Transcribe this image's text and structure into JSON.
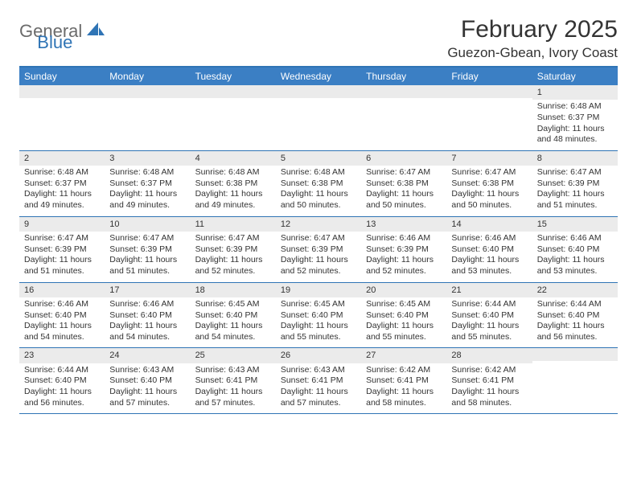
{
  "logo": {
    "part1": "General",
    "part2": "Blue"
  },
  "title": "February 2025",
  "location": "Guezon-Gbean, Ivory Coast",
  "colors": {
    "accent": "#3b7fc4",
    "rule": "#2f74b5",
    "stripe": "#ebebeb"
  },
  "dayNames": [
    "Sunday",
    "Monday",
    "Tuesday",
    "Wednesday",
    "Thursday",
    "Friday",
    "Saturday"
  ],
  "weeks": [
    [
      null,
      null,
      null,
      null,
      null,
      null,
      {
        "n": "1",
        "sr": "Sunrise: 6:48 AM",
        "ss": "Sunset: 6:37 PM",
        "dl": "Daylight: 11 hours and 48 minutes."
      }
    ],
    [
      {
        "n": "2",
        "sr": "Sunrise: 6:48 AM",
        "ss": "Sunset: 6:37 PM",
        "dl": "Daylight: 11 hours and 49 minutes."
      },
      {
        "n": "3",
        "sr": "Sunrise: 6:48 AM",
        "ss": "Sunset: 6:37 PM",
        "dl": "Daylight: 11 hours and 49 minutes."
      },
      {
        "n": "4",
        "sr": "Sunrise: 6:48 AM",
        "ss": "Sunset: 6:38 PM",
        "dl": "Daylight: 11 hours and 49 minutes."
      },
      {
        "n": "5",
        "sr": "Sunrise: 6:48 AM",
        "ss": "Sunset: 6:38 PM",
        "dl": "Daylight: 11 hours and 50 minutes."
      },
      {
        "n": "6",
        "sr": "Sunrise: 6:47 AM",
        "ss": "Sunset: 6:38 PM",
        "dl": "Daylight: 11 hours and 50 minutes."
      },
      {
        "n": "7",
        "sr": "Sunrise: 6:47 AM",
        "ss": "Sunset: 6:38 PM",
        "dl": "Daylight: 11 hours and 50 minutes."
      },
      {
        "n": "8",
        "sr": "Sunrise: 6:47 AM",
        "ss": "Sunset: 6:39 PM",
        "dl": "Daylight: 11 hours and 51 minutes."
      }
    ],
    [
      {
        "n": "9",
        "sr": "Sunrise: 6:47 AM",
        "ss": "Sunset: 6:39 PM",
        "dl": "Daylight: 11 hours and 51 minutes."
      },
      {
        "n": "10",
        "sr": "Sunrise: 6:47 AM",
        "ss": "Sunset: 6:39 PM",
        "dl": "Daylight: 11 hours and 51 minutes."
      },
      {
        "n": "11",
        "sr": "Sunrise: 6:47 AM",
        "ss": "Sunset: 6:39 PM",
        "dl": "Daylight: 11 hours and 52 minutes."
      },
      {
        "n": "12",
        "sr": "Sunrise: 6:47 AM",
        "ss": "Sunset: 6:39 PM",
        "dl": "Daylight: 11 hours and 52 minutes."
      },
      {
        "n": "13",
        "sr": "Sunrise: 6:46 AM",
        "ss": "Sunset: 6:39 PM",
        "dl": "Daylight: 11 hours and 52 minutes."
      },
      {
        "n": "14",
        "sr": "Sunrise: 6:46 AM",
        "ss": "Sunset: 6:40 PM",
        "dl": "Daylight: 11 hours and 53 minutes."
      },
      {
        "n": "15",
        "sr": "Sunrise: 6:46 AM",
        "ss": "Sunset: 6:40 PM",
        "dl": "Daylight: 11 hours and 53 minutes."
      }
    ],
    [
      {
        "n": "16",
        "sr": "Sunrise: 6:46 AM",
        "ss": "Sunset: 6:40 PM",
        "dl": "Daylight: 11 hours and 54 minutes."
      },
      {
        "n": "17",
        "sr": "Sunrise: 6:46 AM",
        "ss": "Sunset: 6:40 PM",
        "dl": "Daylight: 11 hours and 54 minutes."
      },
      {
        "n": "18",
        "sr": "Sunrise: 6:45 AM",
        "ss": "Sunset: 6:40 PM",
        "dl": "Daylight: 11 hours and 54 minutes."
      },
      {
        "n": "19",
        "sr": "Sunrise: 6:45 AM",
        "ss": "Sunset: 6:40 PM",
        "dl": "Daylight: 11 hours and 55 minutes."
      },
      {
        "n": "20",
        "sr": "Sunrise: 6:45 AM",
        "ss": "Sunset: 6:40 PM",
        "dl": "Daylight: 11 hours and 55 minutes."
      },
      {
        "n": "21",
        "sr": "Sunrise: 6:44 AM",
        "ss": "Sunset: 6:40 PM",
        "dl": "Daylight: 11 hours and 55 minutes."
      },
      {
        "n": "22",
        "sr": "Sunrise: 6:44 AM",
        "ss": "Sunset: 6:40 PM",
        "dl": "Daylight: 11 hours and 56 minutes."
      }
    ],
    [
      {
        "n": "23",
        "sr": "Sunrise: 6:44 AM",
        "ss": "Sunset: 6:40 PM",
        "dl": "Daylight: 11 hours and 56 minutes."
      },
      {
        "n": "24",
        "sr": "Sunrise: 6:43 AM",
        "ss": "Sunset: 6:40 PM",
        "dl": "Daylight: 11 hours and 57 minutes."
      },
      {
        "n": "25",
        "sr": "Sunrise: 6:43 AM",
        "ss": "Sunset: 6:41 PM",
        "dl": "Daylight: 11 hours and 57 minutes."
      },
      {
        "n": "26",
        "sr": "Sunrise: 6:43 AM",
        "ss": "Sunset: 6:41 PM",
        "dl": "Daylight: 11 hours and 57 minutes."
      },
      {
        "n": "27",
        "sr": "Sunrise: 6:42 AM",
        "ss": "Sunset: 6:41 PM",
        "dl": "Daylight: 11 hours and 58 minutes."
      },
      {
        "n": "28",
        "sr": "Sunrise: 6:42 AM",
        "ss": "Sunset: 6:41 PM",
        "dl": "Daylight: 11 hours and 58 minutes."
      },
      null
    ]
  ]
}
